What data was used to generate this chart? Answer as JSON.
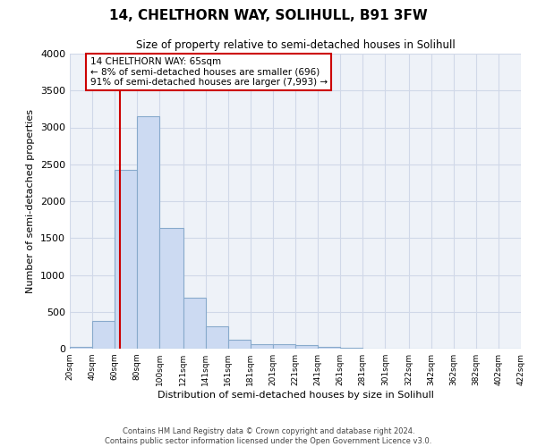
{
  "title": "14, CHELTHORN WAY, SOLIHULL, B91 3FW",
  "subtitle": "Size of property relative to semi-detached houses in Solihull",
  "xlabel": "Distribution of semi-detached houses by size in Solihull",
  "ylabel": "Number of semi-detached properties",
  "footer_line1": "Contains HM Land Registry data © Crown copyright and database right 2024.",
  "footer_line2": "Contains public sector information licensed under the Open Government Licence v3.0.",
  "bar_left_edges": [
    20,
    40,
    60,
    80,
    100,
    121,
    141,
    161,
    181,
    201,
    221,
    241,
    261,
    281,
    301,
    322,
    342,
    362,
    382,
    402
  ],
  "bar_widths": [
    20,
    20,
    20,
    20,
    21,
    20,
    20,
    20,
    20,
    20,
    20,
    20,
    20,
    20,
    21,
    20,
    20,
    20,
    20,
    20
  ],
  "bar_heights": [
    30,
    375,
    2420,
    3150,
    1640,
    695,
    300,
    120,
    65,
    55,
    45,
    20,
    8,
    4,
    2,
    1,
    0,
    0,
    0,
    0
  ],
  "bar_color": "#ccdaf2",
  "bar_edge_color": "#88aacc",
  "grid_color": "#d0d8e8",
  "background_color": "#eef2f8",
  "property_size": 65,
  "red_line_color": "#cc0000",
  "annotation_line1": "14 CHELTHORN WAY: 65sqm",
  "annotation_line2": "← 8% of semi-detached houses are smaller (696)",
  "annotation_line3": "91% of semi-detached houses are larger (7,993) →",
  "xlim": [
    20,
    422
  ],
  "ylim": [
    0,
    4000
  ],
  "yticks": [
    0,
    500,
    1000,
    1500,
    2000,
    2500,
    3000,
    3500,
    4000
  ],
  "xtick_labels": [
    "20sqm",
    "40sqm",
    "60sqm",
    "80sqm",
    "100sqm",
    "121sqm",
    "141sqm",
    "161sqm",
    "181sqm",
    "201sqm",
    "221sqm",
    "241sqm",
    "261sqm",
    "281sqm",
    "301sqm",
    "322sqm",
    "342sqm",
    "362sqm",
    "382sqm",
    "402sqm",
    "422sqm"
  ],
  "xtick_positions": [
    20,
    40,
    60,
    80,
    100,
    121,
    141,
    161,
    181,
    201,
    221,
    241,
    261,
    281,
    301,
    322,
    342,
    362,
    382,
    402,
    422
  ]
}
